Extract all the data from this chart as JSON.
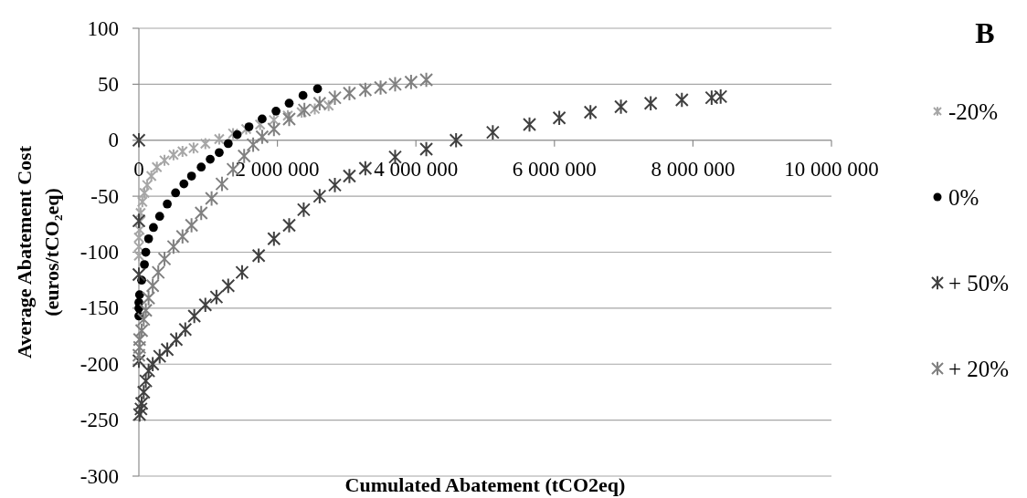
{
  "chart_data": {
    "type": "scatter",
    "xlabel": "Cumulated Abatement (tCO2eq)",
    "ylabel": "Average Abatement Cost\n(euros/tCO₂eq)",
    "annotations": [
      "B"
    ],
    "xlim": [
      0,
      10000000
    ],
    "xticks": [
      0,
      {
        "value": 2000000,
        "label": "2 000 000"
      },
      {
        "value": 4000000,
        "label": "4 000 000"
      },
      {
        "value": 6000000,
        "label": "6 000 000"
      },
      {
        "value": 8000000,
        "label": "8 000 000"
      },
      {
        "value": 10000000,
        "label": "10 000 000"
      }
    ],
    "ylim": [
      -300,
      100
    ],
    "yticks": [
      -300,
      -250,
      -200,
      -150,
      -100,
      -50,
      0,
      50,
      100
    ],
    "grid": "y",
    "legend": "right",
    "marker": "cross",
    "series": [
      {
        "name": "-20%",
        "color": "#a6a6a6",
        "x": [
          0,
          0,
          0,
          10000,
          10000,
          25000,
          50000,
          80000,
          120000,
          180000,
          260000,
          370000,
          500000,
          630000,
          790000,
          960000,
          1160000,
          1360000,
          1550000,
          1750000,
          1950000,
          2150000,
          2350000,
          2540000,
          2740000
        ],
        "values": [
          -103,
          -95,
          -87,
          -80,
          -73,
          -65,
          -55,
          -47,
          -40,
          -32,
          -24,
          -18,
          -13,
          -10,
          -7,
          -3,
          1,
          6,
          10,
          14,
          18,
          22,
          25,
          28,
          31
        ]
      },
      {
        "name": "0%",
        "color": "#000000",
        "marker": "circle",
        "x": [
          0,
          0,
          0,
          10000,
          40000,
          80000,
          100000,
          140000,
          210000,
          300000,
          410000,
          530000,
          650000,
          760000,
          900000,
          1030000,
          1160000,
          1290000,
          1420000,
          1590000,
          1780000,
          1980000,
          2170000,
          2370000,
          2580000
        ],
        "values": [
          -157,
          -150,
          -145,
          -138,
          -125,
          -111,
          -100,
          -88,
          -78,
          -68,
          -57,
          -47,
          -39,
          -32,
          -24,
          -17,
          -11,
          -3,
          5,
          12,
          19,
          26,
          33,
          40,
          46
        ]
      },
      {
        "name": "+ 50%",
        "color": "#404040",
        "x": [
          0,
          0,
          0,
          0,
          10000,
          30000,
          40000,
          70000,
          100000,
          140000,
          200000,
          300000,
          410000,
          540000,
          670000,
          800000,
          960000,
          1120000,
          1290000,
          1490000,
          1730000,
          1950000,
          2170000,
          2380000,
          2610000,
          2830000,
          3040000,
          3270000,
          3700000,
          4150000,
          4580000,
          5110000,
          5640000,
          6070000,
          6520000,
          6960000,
          7390000,
          7840000,
          8270000,
          8400000
        ],
        "values": [
          0,
          -72,
          -120,
          -197,
          -245,
          -240,
          -235,
          -225,
          -215,
          -206,
          -200,
          -193,
          -187,
          -178,
          -169,
          -157,
          -147,
          -140,
          -130,
          -118,
          -103,
          -88,
          -76,
          -62,
          -50,
          -40,
          -32,
          -25,
          -15,
          -8,
          0,
          7,
          14,
          20,
          25,
          30,
          33,
          36,
          38,
          39
        ]
      },
      {
        "name": "+ 20%",
        "color": "#808080",
        "x": [
          0,
          10000,
          10000,
          40000,
          70000,
          100000,
          140000,
          200000,
          280000,
          370000,
          500000,
          630000,
          760000,
          900000,
          1050000,
          1200000,
          1360000,
          1520000,
          1650000,
          1780000,
          1950000,
          2170000,
          2390000,
          2610000,
          2830000,
          3040000,
          3270000,
          3490000,
          3700000,
          3930000,
          4150000
        ],
        "values": [
          -192,
          -185,
          -178,
          -170,
          -160,
          -152,
          -141,
          -130,
          -118,
          -106,
          -95,
          -86,
          -76,
          -65,
          -52,
          -39,
          -26,
          -14,
          -4,
          3,
          10,
          19,
          27,
          33,
          38,
          42,
          45,
          47,
          50,
          52,
          54
        ]
      }
    ]
  }
}
